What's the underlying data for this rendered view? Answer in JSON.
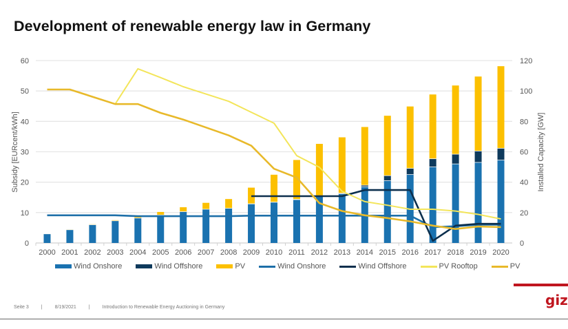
{
  "slide": {
    "title": "Development of renewable energy law in Germany",
    "footer": {
      "page": "Seite 3",
      "separator": "|",
      "date": "8/19/2021",
      "subtitle": "Introduction to Renewable Energy Auctioning in Germany"
    },
    "brand": "giz",
    "brand_color": "#c0161f"
  },
  "chart_data": {
    "type": "bar+line",
    "title": "Development of renewable energy law in Germany",
    "xlabel": "",
    "ylabel_left": "Subsidy [EURcent/kWh]",
    "ylabel_right": "Installed Capacity [GW]",
    "ylim_left": [
      0,
      60
    ],
    "ylim_right": [
      0,
      120
    ],
    "yticks_left": [
      "0",
      "10",
      "20",
      "30",
      "40",
      "50",
      "60"
    ],
    "yticks_right": [
      "0",
      "20",
      "40",
      "60",
      "80",
      "100",
      "120"
    ],
    "grid": true,
    "legend_position": "bottom",
    "categories": [
      "2000",
      "2001",
      "2002",
      "2003",
      "2004",
      "2005",
      "2006",
      "2007",
      "2008",
      "2009",
      "2010",
      "2011",
      "2012",
      "2013",
      "2014",
      "2015",
      "2016",
      "2017",
      "2018",
      "2019",
      "2020"
    ],
    "bar_series": [
      {
        "name": "Wind Onshore",
        "axis": "right",
        "color": "#1a72b0",
        "values": [
          6,
          8.7,
          12,
          14.6,
          16.4,
          18.4,
          20.6,
          22.2,
          22.8,
          25.7,
          26.8,
          28.5,
          30.8,
          32.3,
          37,
          41,
          45,
          50,
          52,
          53,
          54.5
        ]
      },
      {
        "name": "Wind Offshore",
        "axis": "right",
        "color": "#0e3a5c",
        "values": [
          0,
          0,
          0,
          0,
          0,
          0,
          0,
          0,
          0,
          0.1,
          0.1,
          0.2,
          0.3,
          0.5,
          1,
          3.3,
          4.1,
          5.4,
          6.4,
          7.5,
          7.8
        ]
      },
      {
        "name": "PV",
        "axis": "right",
        "color": "#fcc000",
        "values": [
          0.1,
          0.2,
          0.3,
          0.4,
          1.1,
          2,
          2.9,
          4.2,
          6.1,
          10.6,
          18,
          25.9,
          34.1,
          36.7,
          38.3,
          39.4,
          40.7,
          42.3,
          45.2,
          49,
          54
        ]
      }
    ],
    "line_series": [
      {
        "name": "Wind Onshore",
        "axis": "left",
        "color": "#1d6fa8",
        "values": [
          9.1,
          9.1,
          9.1,
          9.1,
          8.8,
          8.8,
          8.8,
          8.8,
          8.8,
          9.0,
          9.0,
          9.0,
          9.0,
          9.0,
          9.0,
          9.0,
          9.0,
          5.2,
          5.5,
          6.0,
          6.0
        ]
      },
      {
        "name": "Wind Offshore",
        "axis": "left",
        "color": "#0c2f4d",
        "values": [
          null,
          null,
          null,
          null,
          null,
          null,
          null,
          null,
          null,
          15.4,
          15.4,
          15.4,
          15.4,
          15.4,
          17.4,
          17.4,
          17.4,
          0.7,
          5.7,
          6.3,
          6.3
        ]
      },
      {
        "name": "PV Rooftop",
        "axis": "left",
        "color": "#f3e55a",
        "values": [
          null,
          null,
          null,
          45.7,
          57.3,
          54.4,
          51.4,
          49,
          46.6,
          43,
          39.4,
          28.7,
          24.9,
          17,
          13.6,
          12.4,
          11.1,
          11.1,
          10.5,
          9.4,
          7.9
        ]
      },
      {
        "name": "PV",
        "axis": "left",
        "color": "#e8b92a",
        "values": [
          50.5,
          50.5,
          48.1,
          45.7,
          45.7,
          42.8,
          40.6,
          38,
          35.4,
          32,
          24.4,
          21.5,
          13.1,
          10.5,
          9.1,
          8.2,
          7.1,
          5.7,
          4.6,
          5.4,
          5.2
        ]
      }
    ]
  },
  "legend": [
    {
      "label": "Wind Onshore",
      "kind": "bar",
      "color": "#1a72b0"
    },
    {
      "label": "Wind Offshore",
      "kind": "bar",
      "color": "#0e3a5c"
    },
    {
      "label": "PV",
      "kind": "bar",
      "color": "#fcc000"
    },
    {
      "label": "Wind Onshore",
      "kind": "line",
      "color": "#1d6fa8"
    },
    {
      "label": "Wind Offshore",
      "kind": "line",
      "color": "#0c2f4d"
    },
    {
      "label": "PV Rooftop",
      "kind": "line",
      "color": "#f3e55a"
    },
    {
      "label": "PV",
      "kind": "line",
      "color": "#e8b92a"
    }
  ]
}
